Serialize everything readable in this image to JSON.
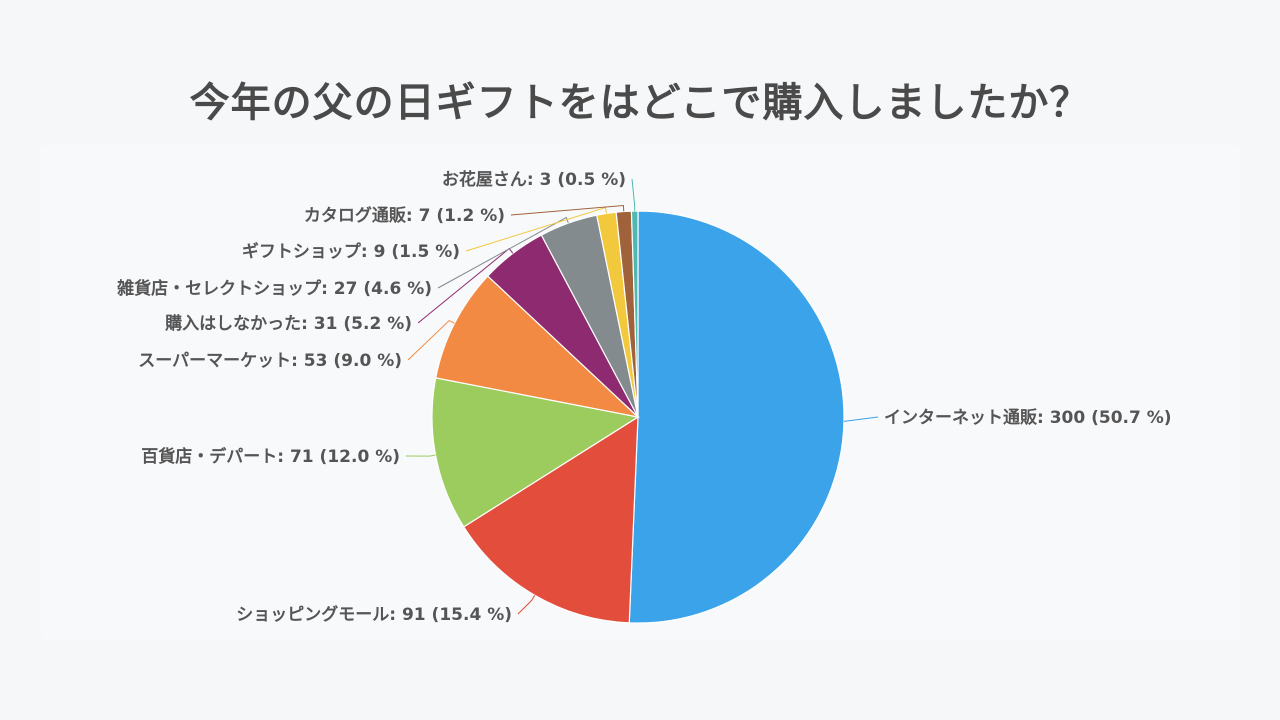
{
  "title": "今年の父の日ギフトをはどこで購入しましたか？",
  "chart_data": {
    "type": "pie",
    "title": "今年の父の日ギフトをはどこで購入しましたか？",
    "slices": [
      {
        "label": "インターネット通販",
        "value": 300,
        "percent": "50.7 %",
        "text": "インターネット通販: 300 (50.7 %)",
        "color": "#3aa3ea"
      },
      {
        "label": "ショッピングモール",
        "value": 91,
        "percent": "15.4 %",
        "text": "ショッピングモール: 91 (15.4 %)",
        "color": "#e34d3b"
      },
      {
        "label": "百貨店・デパート",
        "value": 71,
        "percent": "12.0 %",
        "text": "百貨店・デパート: 71 (12.0 %)",
        "color": "#9ccc5d"
      },
      {
        "label": "スーパーマーケット",
        "value": 53,
        "percent": "9.0 %",
        "text": "スーパーマーケット: 53 (9.0 %)",
        "color": "#f28a43"
      },
      {
        "label": "購入はしなかった",
        "value": 31,
        "percent": "5.2 %",
        "text": "購入はしなかった: 31 (5.2 %)",
        "color": "#8e2a6f"
      },
      {
        "label": "雑貨店・セレクトショップ",
        "value": 27,
        "percent": "4.6 %",
        "text": "雑貨店・セレクトショップ: 27 (4.6 %)",
        "color": "#838b8e"
      },
      {
        "label": "ギフトショップ",
        "value": 9,
        "percent": "1.5 %",
        "text": "ギフトショップ: 9 (1.5 %)",
        "color": "#f2c83c"
      },
      {
        "label": "カタログ通販",
        "value": 7,
        "percent": "1.2 %",
        "text": "カタログ通販: 7 (1.2 %)",
        "color": "#a0623a"
      },
      {
        "label": "お花屋さん",
        "value": 3,
        "percent": "0.5 %",
        "text": "お花屋さん: 3 (0.5 %)",
        "color": "#4fb8b0"
      }
    ]
  }
}
